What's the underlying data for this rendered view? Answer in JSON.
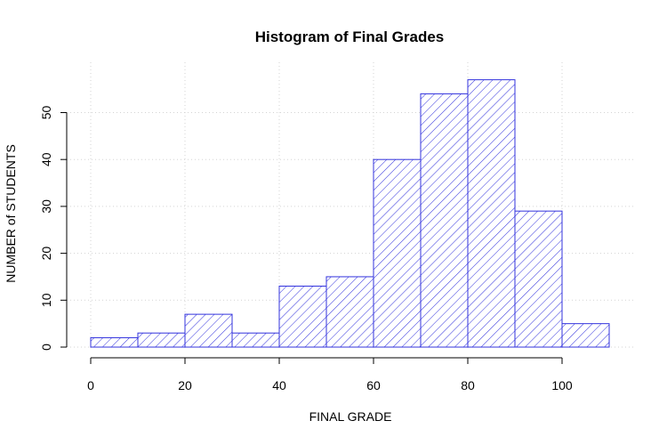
{
  "chart_data": {
    "type": "bar",
    "title": "Histogram of Final Grades",
    "xlabel": "FINAL GRADE",
    "ylabel": "NUMBER of STUDENTS",
    "bins": [
      {
        "from": 0,
        "to": 10,
        "count": 2
      },
      {
        "from": 10,
        "to": 20,
        "count": 3
      },
      {
        "from": 20,
        "to": 30,
        "count": 7
      },
      {
        "from": 30,
        "to": 40,
        "count": 3
      },
      {
        "from": 40,
        "to": 50,
        "count": 13
      },
      {
        "from": 50,
        "to": 60,
        "count": 15
      },
      {
        "from": 60,
        "to": 70,
        "count": 40
      },
      {
        "from": 70,
        "to": 80,
        "count": 54
      },
      {
        "from": 80,
        "to": 90,
        "count": 57
      },
      {
        "from": 90,
        "to": 100,
        "count": 29
      },
      {
        "from": 100,
        "to": 110,
        "count": 5
      }
    ],
    "xticks": [
      0,
      20,
      40,
      60,
      80,
      100
    ],
    "yticks": [
      0,
      10,
      20,
      30,
      40,
      50
    ],
    "xlim": [
      0,
      110
    ],
    "ylim": [
      0,
      57
    ],
    "grid": true,
    "bar_color": "#3333dd",
    "fill": "diagonal hatch"
  }
}
